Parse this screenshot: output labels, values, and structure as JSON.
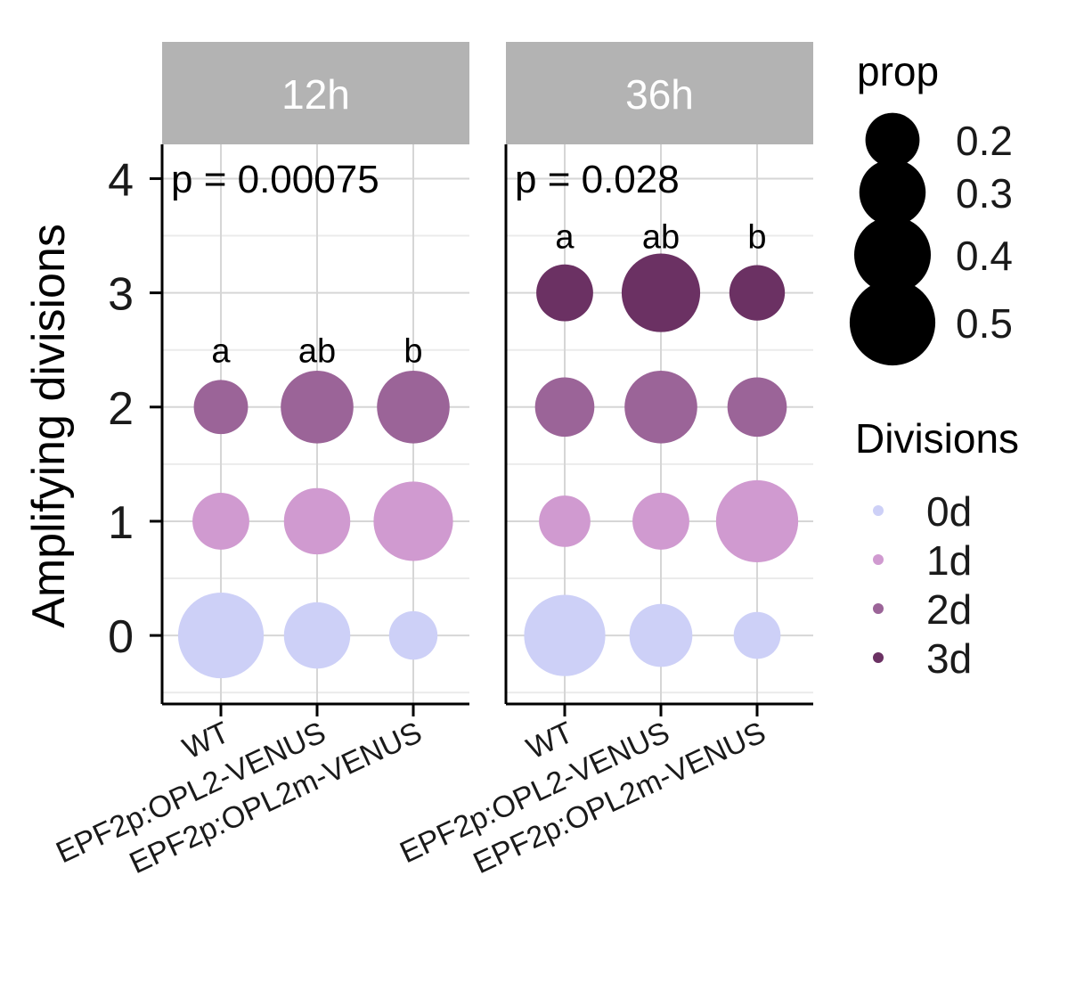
{
  "chart_data": {
    "type": "scatter",
    "ylabel": "Amplifying divisions",
    "xlabel": "",
    "yticks": [
      0,
      1,
      2,
      3,
      4
    ],
    "ylim": [
      -0.6,
      4.3
    ],
    "categories": [
      "WT",
      "EPF2p:OPL2-VENUS",
      "EPF2p:OPL2m-VENUS"
    ],
    "grid": true,
    "panels": [
      {
        "strip": "12h",
        "p_label": "p = 0.00075",
        "letters": [
          "a",
          "ab",
          "b"
        ],
        "letters_at": 2.5,
        "points": [
          {
            "x": "WT",
            "y": 0,
            "prop": 0.5,
            "division": "0d"
          },
          {
            "x": "WT",
            "y": 1,
            "prop": 0.22,
            "division": "1d"
          },
          {
            "x": "WT",
            "y": 2,
            "prop": 0.2,
            "division": "2d"
          },
          {
            "x": "EPF2p:OPL2-VENUS",
            "y": 0,
            "prop": 0.3,
            "division": "0d"
          },
          {
            "x": "EPF2p:OPL2-VENUS",
            "y": 1,
            "prop": 0.3,
            "division": "1d"
          },
          {
            "x": "EPF2p:OPL2-VENUS",
            "y": 2,
            "prop": 0.36,
            "division": "2d"
          },
          {
            "x": "EPF2p:OPL2m-VENUS",
            "y": 0,
            "prop": 0.16,
            "division": "0d"
          },
          {
            "x": "EPF2p:OPL2m-VENUS",
            "y": 1,
            "prop": 0.43,
            "division": "1d"
          },
          {
            "x": "EPF2p:OPL2m-VENUS",
            "y": 2,
            "prop": 0.36,
            "division": "2d"
          }
        ]
      },
      {
        "strip": "36h",
        "p_label": "p = 0.028",
        "letters": [
          "a",
          "ab",
          "b"
        ],
        "letters_at": 3.5,
        "points": [
          {
            "x": "WT",
            "y": 0,
            "prop": 0.45,
            "division": "0d"
          },
          {
            "x": "WT",
            "y": 1,
            "prop": 0.18,
            "division": "1d"
          },
          {
            "x": "WT",
            "y": 2,
            "prop": 0.24,
            "division": "2d"
          },
          {
            "x": "WT",
            "y": 3,
            "prop": 0.22,
            "division": "3d"
          },
          {
            "x": "EPF2p:OPL2-VENUS",
            "y": 0,
            "prop": 0.27,
            "division": "0d"
          },
          {
            "x": "EPF2p:OPL2-VENUS",
            "y": 1,
            "prop": 0.22,
            "division": "1d"
          },
          {
            "x": "EPF2p:OPL2-VENUS",
            "y": 2,
            "prop": 0.36,
            "division": "2d"
          },
          {
            "x": "EPF2p:OPL2-VENUS",
            "y": 3,
            "prop": 0.42,
            "division": "3d"
          },
          {
            "x": "EPF2p:OPL2m-VENUS",
            "y": 0,
            "prop": 0.15,
            "division": "0d"
          },
          {
            "x": "EPF2p:OPL2m-VENUS",
            "y": 1,
            "prop": 0.46,
            "division": "1d"
          },
          {
            "x": "EPF2p:OPL2m-VENUS",
            "y": 2,
            "prop": 0.24,
            "division": "2d"
          },
          {
            "x": "EPF2p:OPL2m-VENUS",
            "y": 3,
            "prop": 0.21,
            "division": "3d"
          }
        ]
      }
    ],
    "legend_size": {
      "title": "prop",
      "values": [
        0.2,
        0.3,
        0.4,
        0.5
      ],
      "labels": [
        "0.2",
        "0.3",
        "0.4",
        "0.5"
      ]
    },
    "legend_color": {
      "title": "Divisions",
      "entries": [
        {
          "label": "0d",
          "color": "#cdd0f7"
        },
        {
          "label": "1d",
          "color": "#d09ad0"
        },
        {
          "label": "2d",
          "color": "#9b6498"
        },
        {
          "label": "3d",
          "color": "#6b3163"
        }
      ]
    },
    "legend_placement": "right"
  },
  "colors": {
    "strip_bg": "#b3b3b3",
    "grid_major": "#d6d6d6",
    "grid_minor": "#ebebeb",
    "axis": "#000000"
  }
}
